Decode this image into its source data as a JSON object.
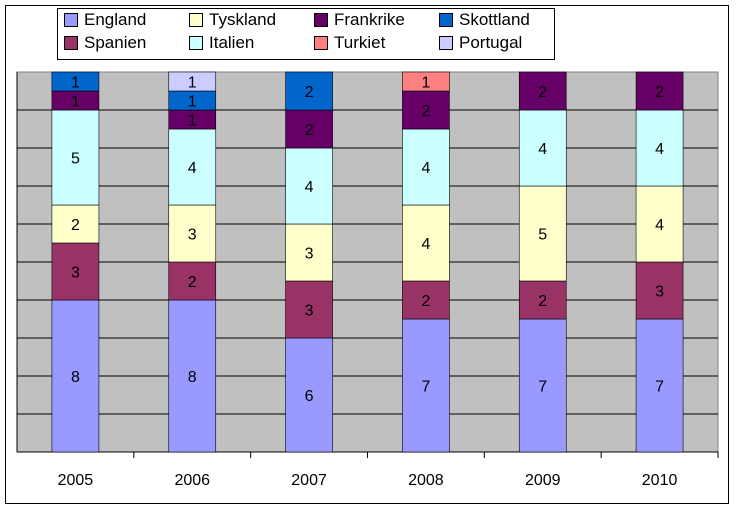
{
  "chart_data": {
    "type": "bar",
    "stacked": true,
    "categories": [
      "2005",
      "2006",
      "2007",
      "2008",
      "2009",
      "2010"
    ],
    "ylim": [
      0,
      20
    ],
    "grid": true,
    "legend_placement": "top",
    "series": [
      {
        "name": "England",
        "color": "#9999FF",
        "values": [
          8,
          8,
          6,
          7,
          7,
          7
        ]
      },
      {
        "name": "Spanien",
        "color": "#993366",
        "values": [
          3,
          2,
          3,
          2,
          2,
          3
        ]
      },
      {
        "name": "Tyskland",
        "color": "#FFFFCC",
        "values": [
          2,
          3,
          3,
          4,
          5,
          4
        ]
      },
      {
        "name": "Italien",
        "color": "#CCFFFF",
        "values": [
          5,
          4,
          4,
          4,
          4,
          4
        ]
      },
      {
        "name": "Frankrike",
        "color": "#660066",
        "values": [
          1,
          1,
          2,
          2,
          2,
          2
        ]
      },
      {
        "name": "Turkiet",
        "color": "#FF8080",
        "values": [
          0,
          0,
          0,
          1,
          0,
          0
        ]
      },
      {
        "name": "Skottland",
        "color": "#0066CC",
        "values": [
          1,
          1,
          2,
          0,
          0,
          0
        ]
      },
      {
        "name": "Portugal",
        "color": "#CCCCFF",
        "values": [
          0,
          1,
          0,
          0,
          0,
          0
        ]
      }
    ]
  }
}
